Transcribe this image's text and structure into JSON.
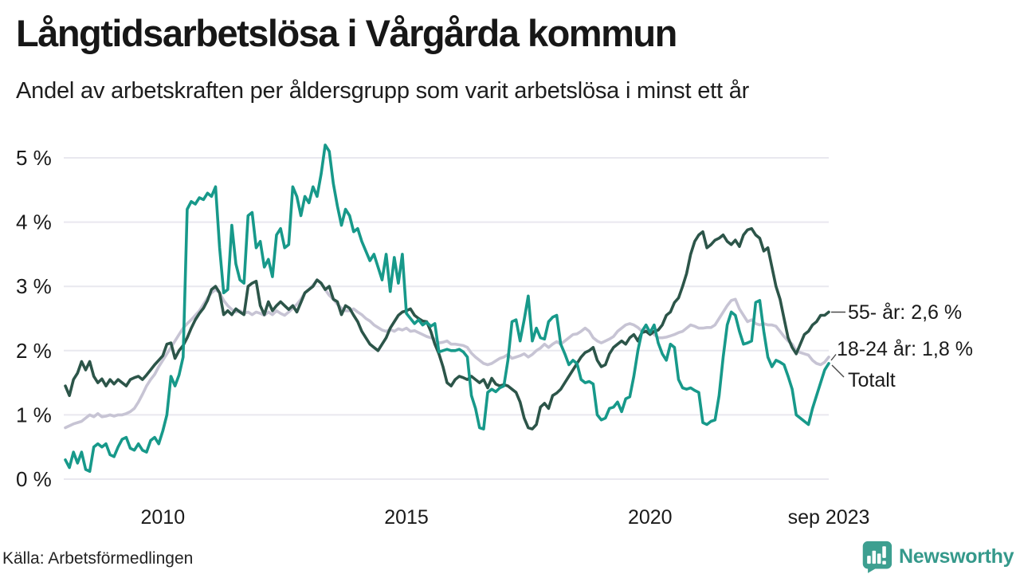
{
  "header": {
    "title": "Långtidsarbetslösa i Vårgårda kommun",
    "subtitle": "Andel av arbetskraften per åldersgrupp som varit arbetslösa i minst ett år"
  },
  "footer": {
    "source": "Källa: Arbetsförmedlingen",
    "brand": "Newsworthy",
    "brand_icon": "newsworthy-speech-bubble-bar-chart-icon",
    "brand_color": "#35998b",
    "brand_icon_color": "#3d9f90"
  },
  "chart_data": {
    "type": "line",
    "title": "Långtidsarbetslösa i Vårgårda kommun",
    "subtitle": "Andel av arbetskraften per åldersgrupp som varit arbetslösa i minst ett år",
    "unit": "%",
    "frequency": "monthly",
    "x_start": "2008-01",
    "x_end": "2023-09",
    "ylim": [
      0,
      5.4
    ],
    "grid": true,
    "grid_color": "#e9e8ef",
    "y_ticks": [
      {
        "label": "0 %",
        "value": 0
      },
      {
        "label": "1 %",
        "value": 1
      },
      {
        "label": "2 %",
        "value": 2
      },
      {
        "label": "3 %",
        "value": 3
      },
      {
        "label": "4 %",
        "value": 4
      },
      {
        "label": "5 %",
        "value": 5
      }
    ],
    "x_ticks": [
      {
        "label": "2010",
        "month_index": 24
      },
      {
        "label": "2015",
        "month_index": 84
      },
      {
        "label": "2020",
        "month_index": 144
      },
      {
        "label": "sep 2023",
        "month_index": 188
      }
    ],
    "series": [
      {
        "name": "Totalt",
        "color": "#c7c4d4",
        "end_label": "Totalt",
        "end_value": 1.9,
        "values": [
          0.8,
          0.83,
          0.86,
          0.88,
          0.9,
          0.95,
          1.0,
          0.97,
          1.02,
          0.97,
          0.98,
          1.0,
          0.98,
          1.0,
          1.0,
          1.02,
          1.05,
          1.1,
          1.2,
          1.32,
          1.45,
          1.55,
          1.63,
          1.75,
          1.85,
          1.95,
          2.05,
          2.15,
          2.25,
          2.35,
          2.42,
          2.48,
          2.55,
          2.62,
          2.72,
          2.82,
          2.9,
          2.95,
          2.9,
          2.78,
          2.7,
          2.64,
          2.6,
          2.62,
          2.58,
          2.6,
          2.56,
          2.6,
          2.58,
          2.55,
          2.6,
          2.56,
          2.62,
          2.58,
          2.55,
          2.6,
          2.66,
          2.72,
          2.8,
          2.9,
          2.95,
          3.02,
          3.1,
          3.05,
          2.95,
          2.86,
          2.8,
          2.72,
          2.66,
          2.62,
          2.62,
          2.65,
          2.6,
          2.56,
          2.5,
          2.46,
          2.4,
          2.36,
          2.32,
          2.3,
          2.33,
          2.3,
          2.34,
          2.32,
          2.35,
          2.3,
          2.31,
          2.28,
          2.25,
          2.22,
          2.2,
          2.18,
          2.12,
          2.13,
          2.15,
          2.1,
          2.1,
          2.09,
          2.08,
          2.05,
          1.96,
          1.9,
          1.85,
          1.8,
          1.78,
          1.8,
          1.84,
          1.88,
          1.9,
          1.94,
          1.88,
          1.9,
          1.92,
          1.95,
          1.9,
          1.94,
          2.0,
          2.04,
          2.1,
          2.05,
          2.1,
          2.14,
          2.1,
          2.15,
          2.2,
          2.25,
          2.26,
          2.3,
          2.35,
          2.3,
          2.2,
          2.15,
          2.12,
          2.15,
          2.18,
          2.22,
          2.3,
          2.35,
          2.4,
          2.42,
          2.4,
          2.36,
          2.3,
          2.32,
          2.3,
          2.25,
          2.2,
          2.2,
          2.21,
          2.23,
          2.25,
          2.28,
          2.3,
          2.35,
          2.4,
          2.38,
          2.35,
          2.35,
          2.36,
          2.36,
          2.4,
          2.5,
          2.6,
          2.7,
          2.78,
          2.8,
          2.65,
          2.55,
          2.45,
          2.48,
          2.42,
          2.4,
          2.42,
          2.4,
          2.4,
          2.38,
          2.3,
          2.22,
          2.15,
          2.1,
          2.0,
          1.97,
          1.95,
          1.93,
          1.85,
          1.8,
          1.78,
          1.82,
          1.9
        ]
      },
      {
        "name": "55- år",
        "color": "#2c5549",
        "end_label": "55- år: 2,6 %",
        "end_value": 2.6,
        "values": [
          1.45,
          1.3,
          1.55,
          1.65,
          1.83,
          1.7,
          1.83,
          1.6,
          1.5,
          1.56,
          1.45,
          1.55,
          1.48,
          1.55,
          1.5,
          1.45,
          1.55,
          1.58,
          1.6,
          1.55,
          1.62,
          1.7,
          1.78,
          1.85,
          1.92,
          2.1,
          2.12,
          1.88,
          2.0,
          2.08,
          2.2,
          2.35,
          2.48,
          2.58,
          2.66,
          2.78,
          2.95,
          3.0,
          2.9,
          2.56,
          2.62,
          2.56,
          2.65,
          2.6,
          2.56,
          3.0,
          3.05,
          3.08,
          2.7,
          2.56,
          2.76,
          2.62,
          2.7,
          2.76,
          2.7,
          2.64,
          2.7,
          2.6,
          2.75,
          2.9,
          2.95,
          3.0,
          3.1,
          3.05,
          2.95,
          3.0,
          2.8,
          2.76,
          2.56,
          2.7,
          2.66,
          2.55,
          2.45,
          2.3,
          2.2,
          2.1,
          2.05,
          2.0,
          2.1,
          2.2,
          2.35,
          2.45,
          2.55,
          2.6,
          2.62,
          2.65,
          2.55,
          2.5,
          2.46,
          2.45,
          2.3,
          2.1,
          1.95,
          1.75,
          1.5,
          1.45,
          1.55,
          1.6,
          1.58,
          1.55,
          1.6,
          1.55,
          1.5,
          1.55,
          1.42,
          1.57,
          1.48,
          1.45,
          1.47,
          1.45,
          1.4,
          1.35,
          1.2,
          0.95,
          0.8,
          0.78,
          0.85,
          1.12,
          1.18,
          1.1,
          1.3,
          1.34,
          1.4,
          1.5,
          1.6,
          1.7,
          1.8,
          1.9,
          1.97,
          2.0,
          2.05,
          1.85,
          1.75,
          1.78,
          1.95,
          2.05,
          2.1,
          2.15,
          2.1,
          2.2,
          2.25,
          2.15,
          2.28,
          2.3,
          2.25,
          2.3,
          2.32,
          2.4,
          2.55,
          2.6,
          2.75,
          2.82,
          3.0,
          3.2,
          3.5,
          3.7,
          3.8,
          3.85,
          3.6,
          3.65,
          3.72,
          3.75,
          3.8,
          3.7,
          3.65,
          3.72,
          3.62,
          3.8,
          3.88,
          3.9,
          3.8,
          3.75,
          3.55,
          3.6,
          3.3,
          3.0,
          2.8,
          2.5,
          2.2,
          2.05,
          1.95,
          2.1,
          2.25,
          2.3,
          2.4,
          2.45,
          2.55,
          2.55,
          2.6
        ]
      },
      {
        "name": "18-24 år",
        "color": "#17998a",
        "end_label": "18-24 år: 1,8 %",
        "end_value": 1.8,
        "values": [
          0.3,
          0.18,
          0.42,
          0.25,
          0.42,
          0.15,
          0.12,
          0.5,
          0.55,
          0.5,
          0.55,
          0.38,
          0.35,
          0.5,
          0.62,
          0.65,
          0.48,
          0.45,
          0.55,
          0.45,
          0.42,
          0.6,
          0.65,
          0.55,
          0.75,
          1.0,
          1.6,
          1.45,
          1.62,
          1.9,
          4.2,
          4.32,
          4.28,
          4.38,
          4.35,
          4.45,
          4.4,
          4.55,
          3.6,
          2.9,
          2.95,
          3.95,
          3.35,
          3.1,
          3.05,
          4.1,
          4.15,
          3.6,
          3.7,
          3.3,
          3.42,
          3.15,
          3.8,
          3.9,
          3.6,
          3.65,
          4.55,
          4.4,
          4.1,
          4.4,
          4.3,
          4.55,
          4.4,
          4.75,
          5.2,
          5.1,
          4.6,
          4.25,
          3.95,
          4.2,
          4.1,
          3.85,
          3.9,
          3.7,
          3.55,
          3.4,
          3.5,
          3.3,
          3.1,
          3.5,
          2.92,
          3.45,
          3.05,
          3.5,
          2.58,
          2.5,
          2.42,
          2.48,
          2.4,
          2.44,
          2.38,
          2.42,
          1.98,
          2.0,
          2.02,
          2.0,
          2.0,
          2.02,
          1.98,
          1.9,
          1.3,
          1.1,
          0.8,
          0.78,
          1.35,
          1.4,
          1.36,
          1.42,
          1.45,
          1.85,
          2.45,
          2.48,
          2.15,
          2.48,
          2.85,
          2.15,
          2.35,
          2.2,
          2.18,
          2.45,
          2.52,
          2.55,
          2.1,
          1.95,
          1.78,
          1.85,
          1.8,
          1.55,
          1.5,
          1.52,
          1.48,
          1.0,
          0.92,
          0.95,
          1.1,
          1.12,
          1.2,
          1.05,
          1.25,
          1.28,
          1.6,
          2.0,
          2.3,
          2.4,
          2.28,
          2.4,
          2.12,
          1.95,
          1.85,
          2.1,
          2.05,
          1.55,
          1.42,
          1.4,
          1.42,
          1.38,
          1.35,
          0.88,
          0.85,
          0.9,
          0.92,
          1.3,
          1.9,
          2.4,
          2.6,
          2.55,
          2.3,
          2.1,
          2.12,
          2.15,
          2.75,
          2.78,
          2.3,
          1.9,
          1.75,
          1.85,
          1.82,
          1.78,
          1.6,
          1.4,
          1.0,
          0.95,
          0.9,
          0.85,
          1.1,
          1.3,
          1.5,
          1.7,
          1.8
        ]
      }
    ],
    "legend_position": "end-of-line-labels-right"
  }
}
